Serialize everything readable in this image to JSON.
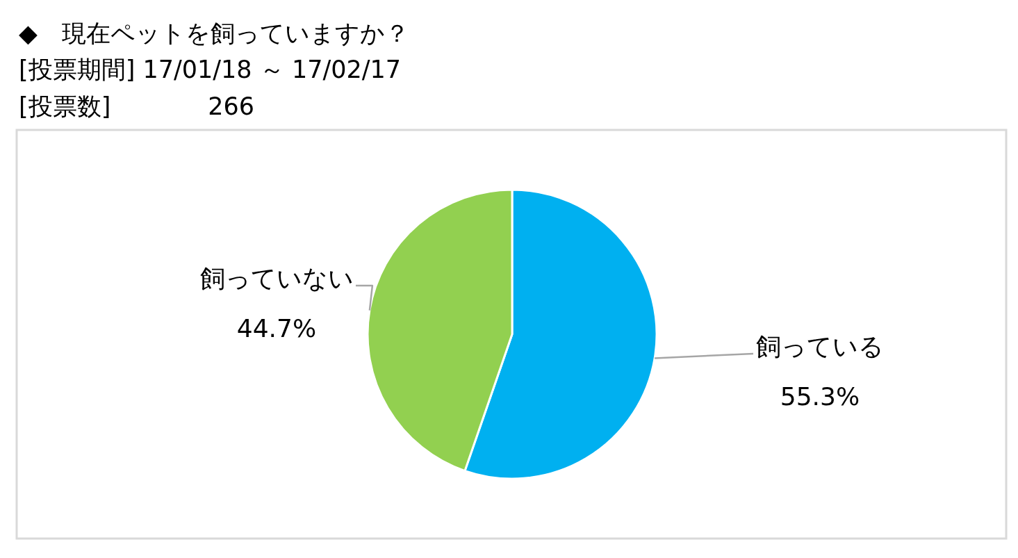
{
  "chart_data": {
    "type": "pie",
    "title": "◆　現在ペットを飼っていますか？",
    "subtitle": "[投票期間] 17/01/18 ～ 17/02/17",
    "annotations": [
      "[投票数]　　　　266"
    ],
    "categories": [
      "飼っている",
      "飼っていない"
    ],
    "values": [
      55.3,
      44.7
    ],
    "colors": [
      "#00b0f0",
      "#92d050"
    ],
    "value_labels": [
      "55.3%",
      "44.7%"
    ]
  }
}
